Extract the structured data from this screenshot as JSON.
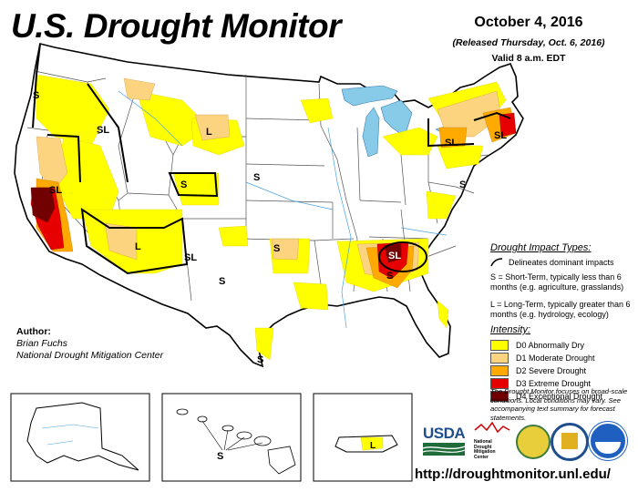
{
  "header": {
    "title": "U.S. Drought Monitor",
    "date": "October 4, 2016",
    "released": "(Released Thursday, Oct. 6, 2016)",
    "valid": "Valid 8 a.m. EDT"
  },
  "author": {
    "heading": "Author:",
    "name": "Brian Fuchs",
    "org": "National Drought Mitigation Center"
  },
  "legend": {
    "impact_heading": "Drought Impact Types:",
    "impact_line": "Delineates dominant impacts",
    "short_term": "S = Short-Term, typically less than 6 months (e.g. agriculture, grasslands)",
    "long_term": "L = Long-Term, typically greater than 6 months (e.g. hydrology, ecology)",
    "intensity_heading": "Intensity:",
    "categories": [
      {
        "label": "D0 Abnormally Dry",
        "color": "#ffff00"
      },
      {
        "label": "D1 Moderate Drought",
        "color": "#fcd37f"
      },
      {
        "label": "D2 Severe Drought",
        "color": "#ffaa00"
      },
      {
        "label": "D3 Extreme Drought",
        "color": "#e60000"
      },
      {
        "label": "D4 Exceptional Drought",
        "color": "#730000"
      }
    ]
  },
  "map_labels": {
    "s": "S",
    "sl": "SL",
    "l": "L"
  },
  "note": "The Drought Monitor focuses on broad-scale conditions. Local conditions may vary. See accompanying text summary for forecast statements.",
  "logos": {
    "usda": "USDA",
    "ndmc": "National Drought Mitigation Center"
  },
  "url": "http://droughtmonitor.unl.edu/",
  "colors": {
    "water": "#a6cee3",
    "lake": "#87cbe8",
    "river": "#4aa3df",
    "border": "#000000"
  }
}
